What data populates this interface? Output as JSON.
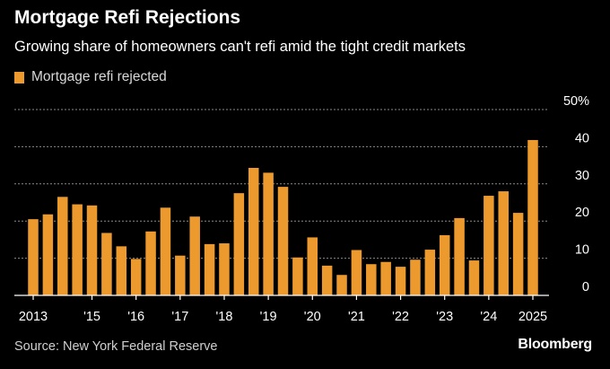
{
  "title": "Mortgage Refi Rejections",
  "subtitle": "Growing share of homeowners can't refi amid the tight credit markets",
  "source": "Source: New York Federal Reserve",
  "brand": "Bloomberg",
  "colors": {
    "bar": "#ec9a2e",
    "grid": "#8a8a8a",
    "axis": "#ffffff",
    "text": "#ffffff"
  },
  "chart_data": {
    "type": "bar",
    "series": [
      {
        "name": "Mortgage refi rejected",
        "values": [
          20.5,
          21.8,
          26.5,
          24.5,
          24.2,
          16.8,
          13.2,
          9.8,
          17.2,
          23.6,
          10.7,
          21.2,
          13.8,
          14.0,
          27.5,
          34.3,
          33.0,
          29.2,
          10.2,
          15.6,
          8.0,
          5.5,
          12.2,
          8.4,
          9.0,
          7.7,
          9.6,
          12.3,
          16.2,
          20.8,
          9.4,
          26.8,
          28.0,
          22.2,
          41.8
        ]
      }
    ],
    "ylim": [
      0,
      50
    ],
    "yticks": [
      {
        "value": 50,
        "label": "50%"
      },
      {
        "value": 40,
        "label": "40"
      },
      {
        "value": 30,
        "label": "30"
      },
      {
        "value": 20,
        "label": "20"
      },
      {
        "value": 10,
        "label": "10"
      },
      {
        "value": 0,
        "label": "0"
      }
    ],
    "xticks": [
      {
        "index": 0,
        "label": "2013"
      },
      {
        "index": 4,
        "label": "'15"
      },
      {
        "index": 7,
        "label": "'16"
      },
      {
        "index": 10,
        "label": "'17"
      },
      {
        "index": 13,
        "label": "'18"
      },
      {
        "index": 16,
        "label": "'19"
      },
      {
        "index": 19,
        "label": "'20"
      },
      {
        "index": 22,
        "label": "'21"
      },
      {
        "index": 25,
        "label": "'22"
      },
      {
        "index": 28,
        "label": "'23"
      },
      {
        "index": 31,
        "label": "'24"
      },
      {
        "index": 34,
        "label": "2025"
      }
    ],
    "grid": true,
    "legend": "top-left",
    "yaxis_side": "right"
  }
}
